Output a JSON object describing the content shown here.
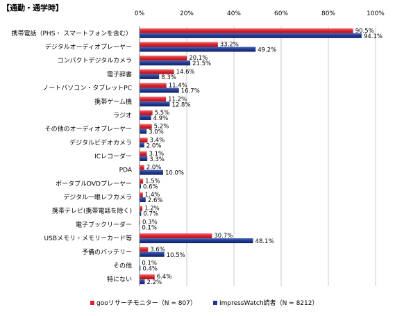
{
  "chart_data": {
    "type": "bar",
    "orientation": "horizontal",
    "title": "【通勤・通学時】",
    "xlim": [
      0,
      100
    ],
    "x_ticks": [
      "0%",
      "20%",
      "40%",
      "60%",
      "80%",
      "100%"
    ],
    "grid": true,
    "legend_position": "bottom",
    "categories": [
      "携帯電話（PHS・ スマートフォンを含む）",
      "デジタルオーディオプレーヤー",
      "コンパクトデジタルカメラ",
      "電子辞書",
      "ノートパソコン・タブレットPC",
      "携帯ゲーム機",
      "ラジオ",
      "その他のオーディオプレーヤー",
      "デジタルビデオカメラ",
      "ICレコーダー",
      "PDA",
      "ポータブルDVDプレーヤー",
      "デジタル一眼レフカメラ",
      "携帯テレビ(携帯電話を除く)",
      "電子ブックリーダー",
      "USBメモリ・メモリーカード等",
      "予備のバッテリー",
      "その他",
      "特にない"
    ],
    "series": [
      {
        "name": "gooリサーチモニター（N = 807）",
        "color": "#d9232d",
        "values": [
          90.5,
          33.2,
          20.1,
          14.6,
          11.4,
          11.2,
          5.5,
          5.2,
          3.4,
          3.1,
          2.0,
          1.5,
          1.4,
          1.2,
          0.3,
          30.7,
          3.6,
          0.1,
          6.4
        ],
        "labels": [
          "90.5%",
          "33.2%",
          "20.1%",
          "14.6%",
          "11.4%",
          "11.2%",
          "5.5%",
          "5.2%",
          "3.4%",
          "3.1%",
          "2.0%",
          "1.5%",
          "1.4%",
          "1.2%",
          "0.3%",
          "30.7%",
          "3.6%",
          "0.1%",
          "6.4%"
        ]
      },
      {
        "name": "ImpressWatch読者（N = 8212）",
        "color": "#1f3a93",
        "values": [
          94.1,
          49.2,
          21.5,
          8.3,
          16.7,
          12.8,
          4.9,
          3.0,
          2.0,
          3.3,
          10.0,
          0.6,
          2.6,
          0.7,
          0.1,
          48.1,
          10.5,
          0.4,
          2.2
        ],
        "labels": [
          "94.1%",
          "49.2%",
          "21.5%",
          "8.3%",
          "16.7%",
          "12.8%",
          "4.9%",
          "3.0%",
          "2.0%",
          "3.3%",
          "10.0%",
          "0.6%",
          "2.6%",
          "0.7%",
          "0.1%",
          "48.1%",
          "10.5%",
          "0.4%",
          "2.2%"
        ]
      }
    ]
  }
}
